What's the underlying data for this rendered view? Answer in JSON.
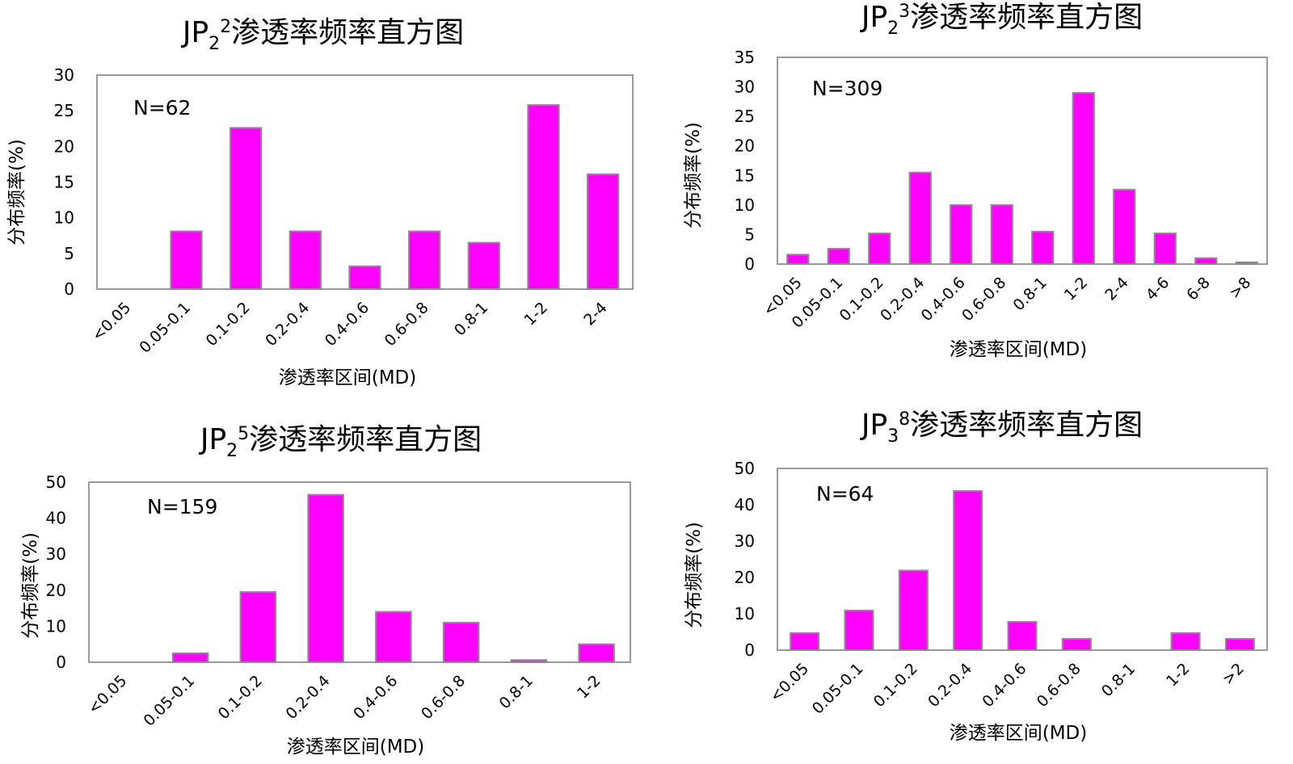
{
  "chart_data": [
    {
      "type": "bar",
      "title": {
        "prefix": "JP",
        "sub": "2",
        "sup": "2",
        "suffix": "渗透率频率直方图"
      },
      "annotation": "N=62",
      "ylabel": "分布频率(%)",
      "xlabel": "渗透率区间(MD)",
      "ylim": [
        0,
        30
      ],
      "yticks": [
        0,
        5,
        10,
        15,
        20,
        25,
        30
      ],
      "categories": [
        "<0.05",
        "0.05-0.1",
        "0.1-0.2",
        "0.2-0.4",
        "0.4-0.6",
        "0.6-0.8",
        "0.8-1",
        "1-2",
        "2-4"
      ],
      "values": [
        0,
        8.1,
        22.6,
        8.1,
        3.2,
        8.1,
        6.5,
        25.8,
        16.1
      ]
    },
    {
      "type": "bar",
      "title": {
        "prefix": "JP",
        "sub": "2",
        "sup": "3",
        "suffix": "渗透率频率直方图"
      },
      "annotation": "N=309",
      "ylabel": "分布频率(%)",
      "xlabel": "渗透率区间(MD)",
      "ylim": [
        0,
        35
      ],
      "yticks": [
        0,
        5,
        10,
        15,
        20,
        25,
        30,
        35
      ],
      "categories": [
        "<0.05",
        "0.05-0.1",
        "0.1-0.2",
        "0.2-0.4",
        "0.4-0.6",
        "0.6-0.8",
        "0.8-1",
        "1-2",
        "2-4",
        "4-6",
        "6-8",
        ">8"
      ],
      "values": [
        1.6,
        2.6,
        5.2,
        15.5,
        10.0,
        10.0,
        5.5,
        29.0,
        12.6,
        5.2,
        1.0,
        0.3
      ]
    },
    {
      "type": "bar",
      "title": {
        "prefix": "JP",
        "sub": "2",
        "sup": "5",
        "suffix": "渗透率频率直方图"
      },
      "annotation": "N=159",
      "ylabel": "分布频率(%)",
      "xlabel": "渗透率区间(MD)",
      "ylim": [
        0,
        50
      ],
      "yticks": [
        0,
        10,
        20,
        30,
        40,
        50
      ],
      "categories": [
        "<0.05",
        "0.05-0.1",
        "0.1-0.2",
        "0.2-0.4",
        "0.4-0.6",
        "0.6-0.8",
        "0.8-1",
        "1-2"
      ],
      "values": [
        0,
        2.5,
        19.5,
        46.5,
        14.0,
        11.0,
        0.6,
        5.0
      ]
    },
    {
      "type": "bar",
      "title": {
        "prefix": "JP",
        "sub": "3",
        "sup": "8",
        "suffix": "渗透率频率直方图"
      },
      "annotation": "N=64",
      "ylabel": "分布频率(%)",
      "xlabel": "渗透率区间(MD)",
      "ylim": [
        0,
        50
      ],
      "yticks": [
        0,
        10,
        20,
        30,
        40,
        50
      ],
      "categories": [
        "<0.05",
        "0.05-0.1",
        "0.1-0.2",
        "0.2-0.4",
        "0.4-0.6",
        "0.6-0.8",
        "0.8-1",
        "1-2",
        ">2"
      ],
      "values": [
        4.7,
        10.9,
        21.9,
        43.8,
        7.8,
        3.1,
        0,
        4.7,
        3.1
      ]
    }
  ]
}
